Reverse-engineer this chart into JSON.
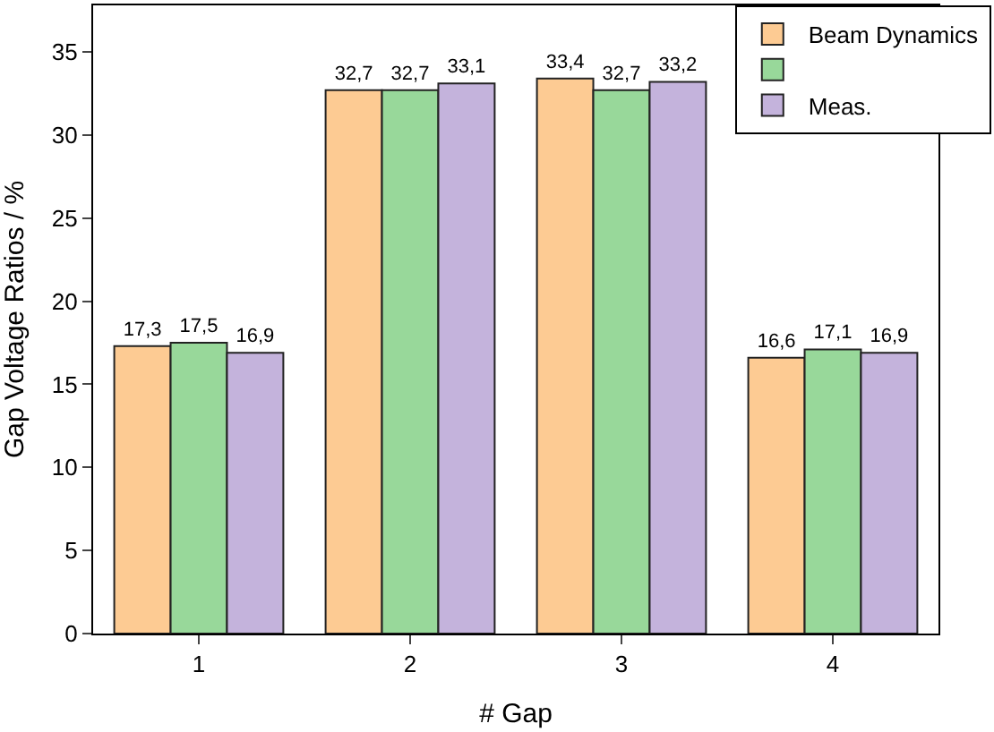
{
  "chart_data": {
    "type": "bar",
    "xlabel": "# Gap",
    "ylabel": "Gap Voltage Ratios / %",
    "categories": [
      "1",
      "2",
      "3",
      "4"
    ],
    "series": [
      {
        "name": "Beam Dynamics",
        "color": "#fdcb93",
        "values": [
          17.3,
          32.7,
          33.4,
          16.6
        ],
        "value_labels": [
          "17,3",
          "32,7",
          "33,4",
          "16,6"
        ]
      },
      {
        "color": "#98d89a",
        "values": [
          17.5,
          32.7,
          32.7,
          17.1
        ],
        "value_labels": [
          "17,5",
          "32,7",
          "32,7",
          "17,1"
        ]
      },
      {
        "name": "Meas.",
        "color": "#c4b3dc",
        "values": [
          16.9,
          33.1,
          33.2,
          16.9
        ],
        "value_labels": [
          "16,9",
          "33,1",
          "33,2",
          "16,9"
        ]
      }
    ],
    "ylim": [
      0,
      37.8
    ],
    "yticks": [
      0,
      5,
      10,
      15,
      20,
      25,
      30,
      35
    ],
    "legend": "top right"
  }
}
